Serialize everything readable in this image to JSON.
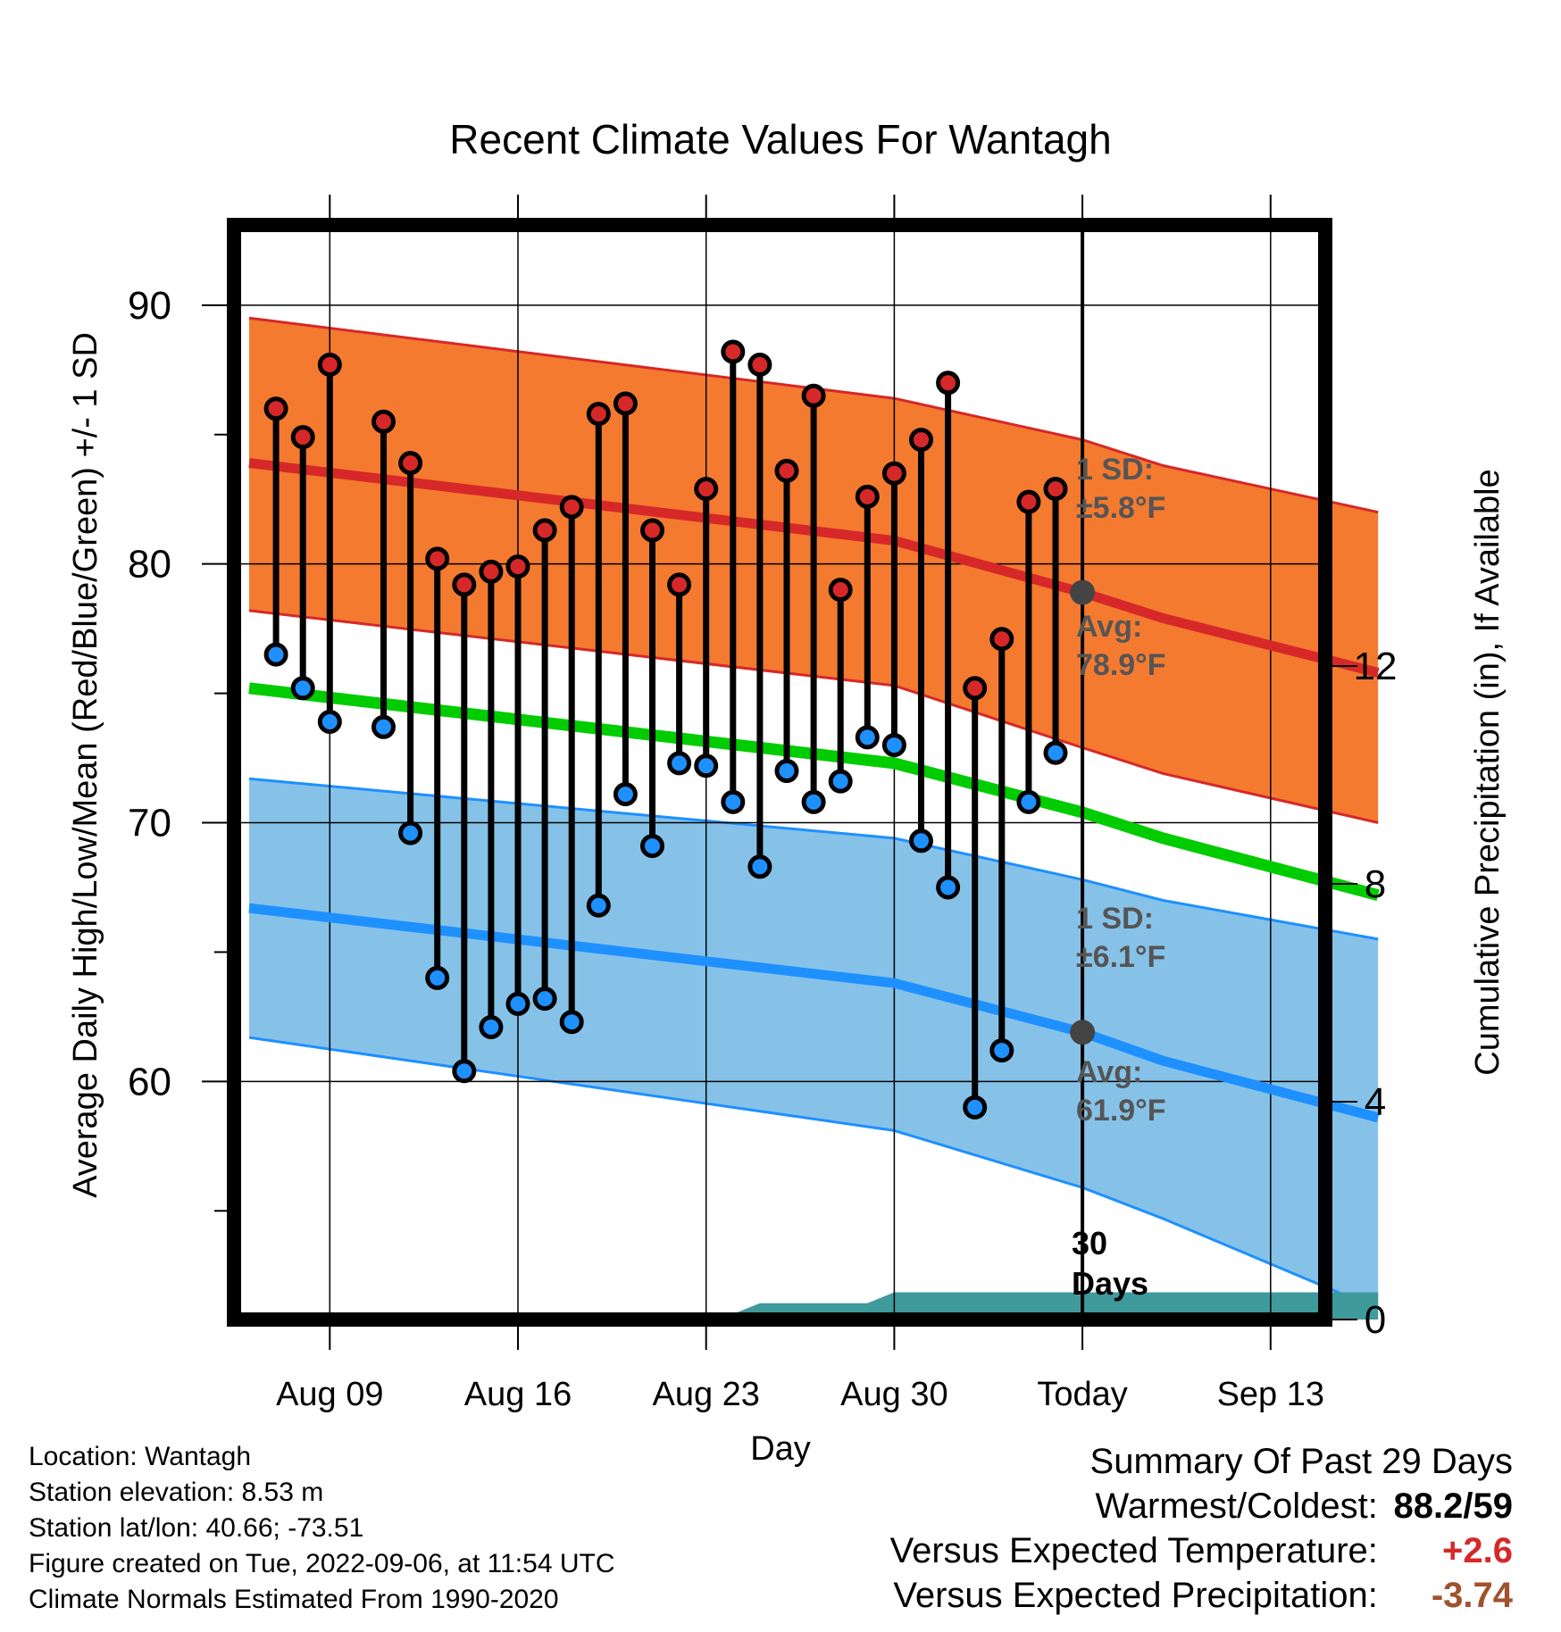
{
  "chart_data": {
    "type": "line",
    "title": "Recent Climate Values For Wantagh",
    "xlabel": "Day",
    "ylabel": "Average Daily High/Low/Mean (Red/Blue/Green) +/- 1 SD",
    "y2label": "Cumulative Precipitation (in), If Available",
    "ylim": [
      50.8,
      93.1
    ],
    "y2lim": [
      0,
      20.1
    ],
    "x_ticks": [
      "Aug 09",
      "Aug 16",
      "Aug 23",
      "Aug 30",
      "Today",
      "Sep 13"
    ],
    "y_ticks": [
      60,
      70,
      80,
      90
    ],
    "y2_ticks": [
      0,
      4,
      8,
      12
    ],
    "grid": true,
    "today_label": [
      "30",
      "Days"
    ],
    "days": [
      "Aug 07",
      "Aug 08",
      "Aug 09",
      "Aug 10",
      "Aug 11",
      "Aug 12",
      "Aug 13",
      "Aug 14",
      "Aug 15",
      "Aug 16",
      "Aug 17",
      "Aug 18",
      "Aug 19",
      "Aug 20",
      "Aug 21",
      "Aug 22",
      "Aug 23",
      "Aug 24",
      "Aug 25",
      "Aug 26",
      "Aug 27",
      "Aug 28",
      "Aug 29",
      "Aug 30",
      "Aug 31",
      "Sep 01",
      "Sep 02",
      "Sep 03",
      "Sep 04",
      "Sep 05",
      "Sep 06"
    ],
    "daily_high": [
      86.0,
      84.9,
      87.7,
      null,
      85.5,
      83.9,
      80.2,
      79.2,
      79.7,
      79.9,
      81.3,
      82.2,
      85.8,
      86.2,
      81.3,
      79.2,
      82.9,
      88.2,
      87.7,
      83.6,
      86.5,
      79.0,
      82.6,
      83.5,
      84.8,
      87.0,
      75.2,
      77.1,
      82.4,
      82.9,
      null
    ],
    "daily_low": [
      76.5,
      75.2,
      73.9,
      null,
      73.7,
      69.6,
      64.0,
      60.4,
      62.1,
      63.0,
      63.2,
      62.3,
      66.8,
      71.1,
      69.1,
      72.3,
      72.2,
      70.8,
      68.3,
      72.0,
      70.8,
      71.6,
      73.3,
      73.0,
      69.3,
      67.5,
      59.0,
      61.2,
      70.8,
      72.7,
      null
    ],
    "normal_days": [
      "Aug 06",
      "Aug 30",
      "Sep 06",
      "Sep 09",
      "Sep 17"
    ],
    "normal_high": [
      83.9,
      80.9,
      78.9,
      77.9,
      75.8
    ],
    "normal_high_sd_upper": [
      89.5,
      86.4,
      84.8,
      83.8,
      82.0
    ],
    "normal_high_sd_lower": [
      78.2,
      75.3,
      72.9,
      71.9,
      70.0
    ],
    "normal_low": [
      66.7,
      63.8,
      61.9,
      60.8,
      58.6
    ],
    "normal_low_sd_upper": [
      71.7,
      69.4,
      67.8,
      67.0,
      65.5
    ],
    "normal_low_sd_lower": [
      61.7,
      58.1,
      55.9,
      54.7,
      51.2
    ],
    "normal_mean": [
      75.2,
      72.3,
      70.4,
      69.4,
      67.2
    ],
    "cumulative_precip_days": [
      "Aug 06",
      "Aug 23",
      "Aug 24",
      "Aug 25",
      "Aug 29",
      "Aug 30",
      "Aug 31",
      "Sep 17"
    ],
    "cumulative_precip": [
      0.0,
      0.0,
      0.1,
      0.3,
      0.3,
      0.5,
      0.5,
      0.5
    ],
    "high_annotation": {
      "sd_label": "1 SD:",
      "sd_value": "±5.8°F",
      "avg_label": "Avg:",
      "avg_value": "78.9°F"
    },
    "low_annotation": {
      "sd_label": "1 SD:",
      "sd_value": "±6.1°F",
      "avg_label": "Avg:",
      "avg_value": "61.9°F"
    },
    "colors": {
      "high_band": "#f47a30",
      "high_line": "#d62828",
      "low_band": "#86c2e8",
      "low_line": "#1e90ff",
      "mean_line": "#00cc00",
      "precip": "#3f9a9c",
      "high_dot": "#d62828",
      "low_dot": "#1e90ff",
      "annotation": "#555555",
      "marker": "#444444"
    }
  },
  "info": {
    "location": "Location: Wantagh",
    "elevation": "Station elevation: 8.53 m",
    "latlon": "Station lat/lon: 40.66; -73.51",
    "created": "Figure created on Tue, 2022-09-06, at 11:54 UTC",
    "normals": "Climate Normals Estimated From 1990-2020"
  },
  "summary": {
    "title": "Summary Of Past 29 Days",
    "warm_cold_label": "Warmest/Coldest:",
    "warm_cold_value": "88.2/59",
    "temp_label": "Versus Expected Temperature:",
    "temp_value": "+2.6",
    "precip_label": "Versus Expected Precipitation:",
    "precip_value": "-3.74",
    "temp_color": "#d62828",
    "precip_color": "#a0522d"
  }
}
